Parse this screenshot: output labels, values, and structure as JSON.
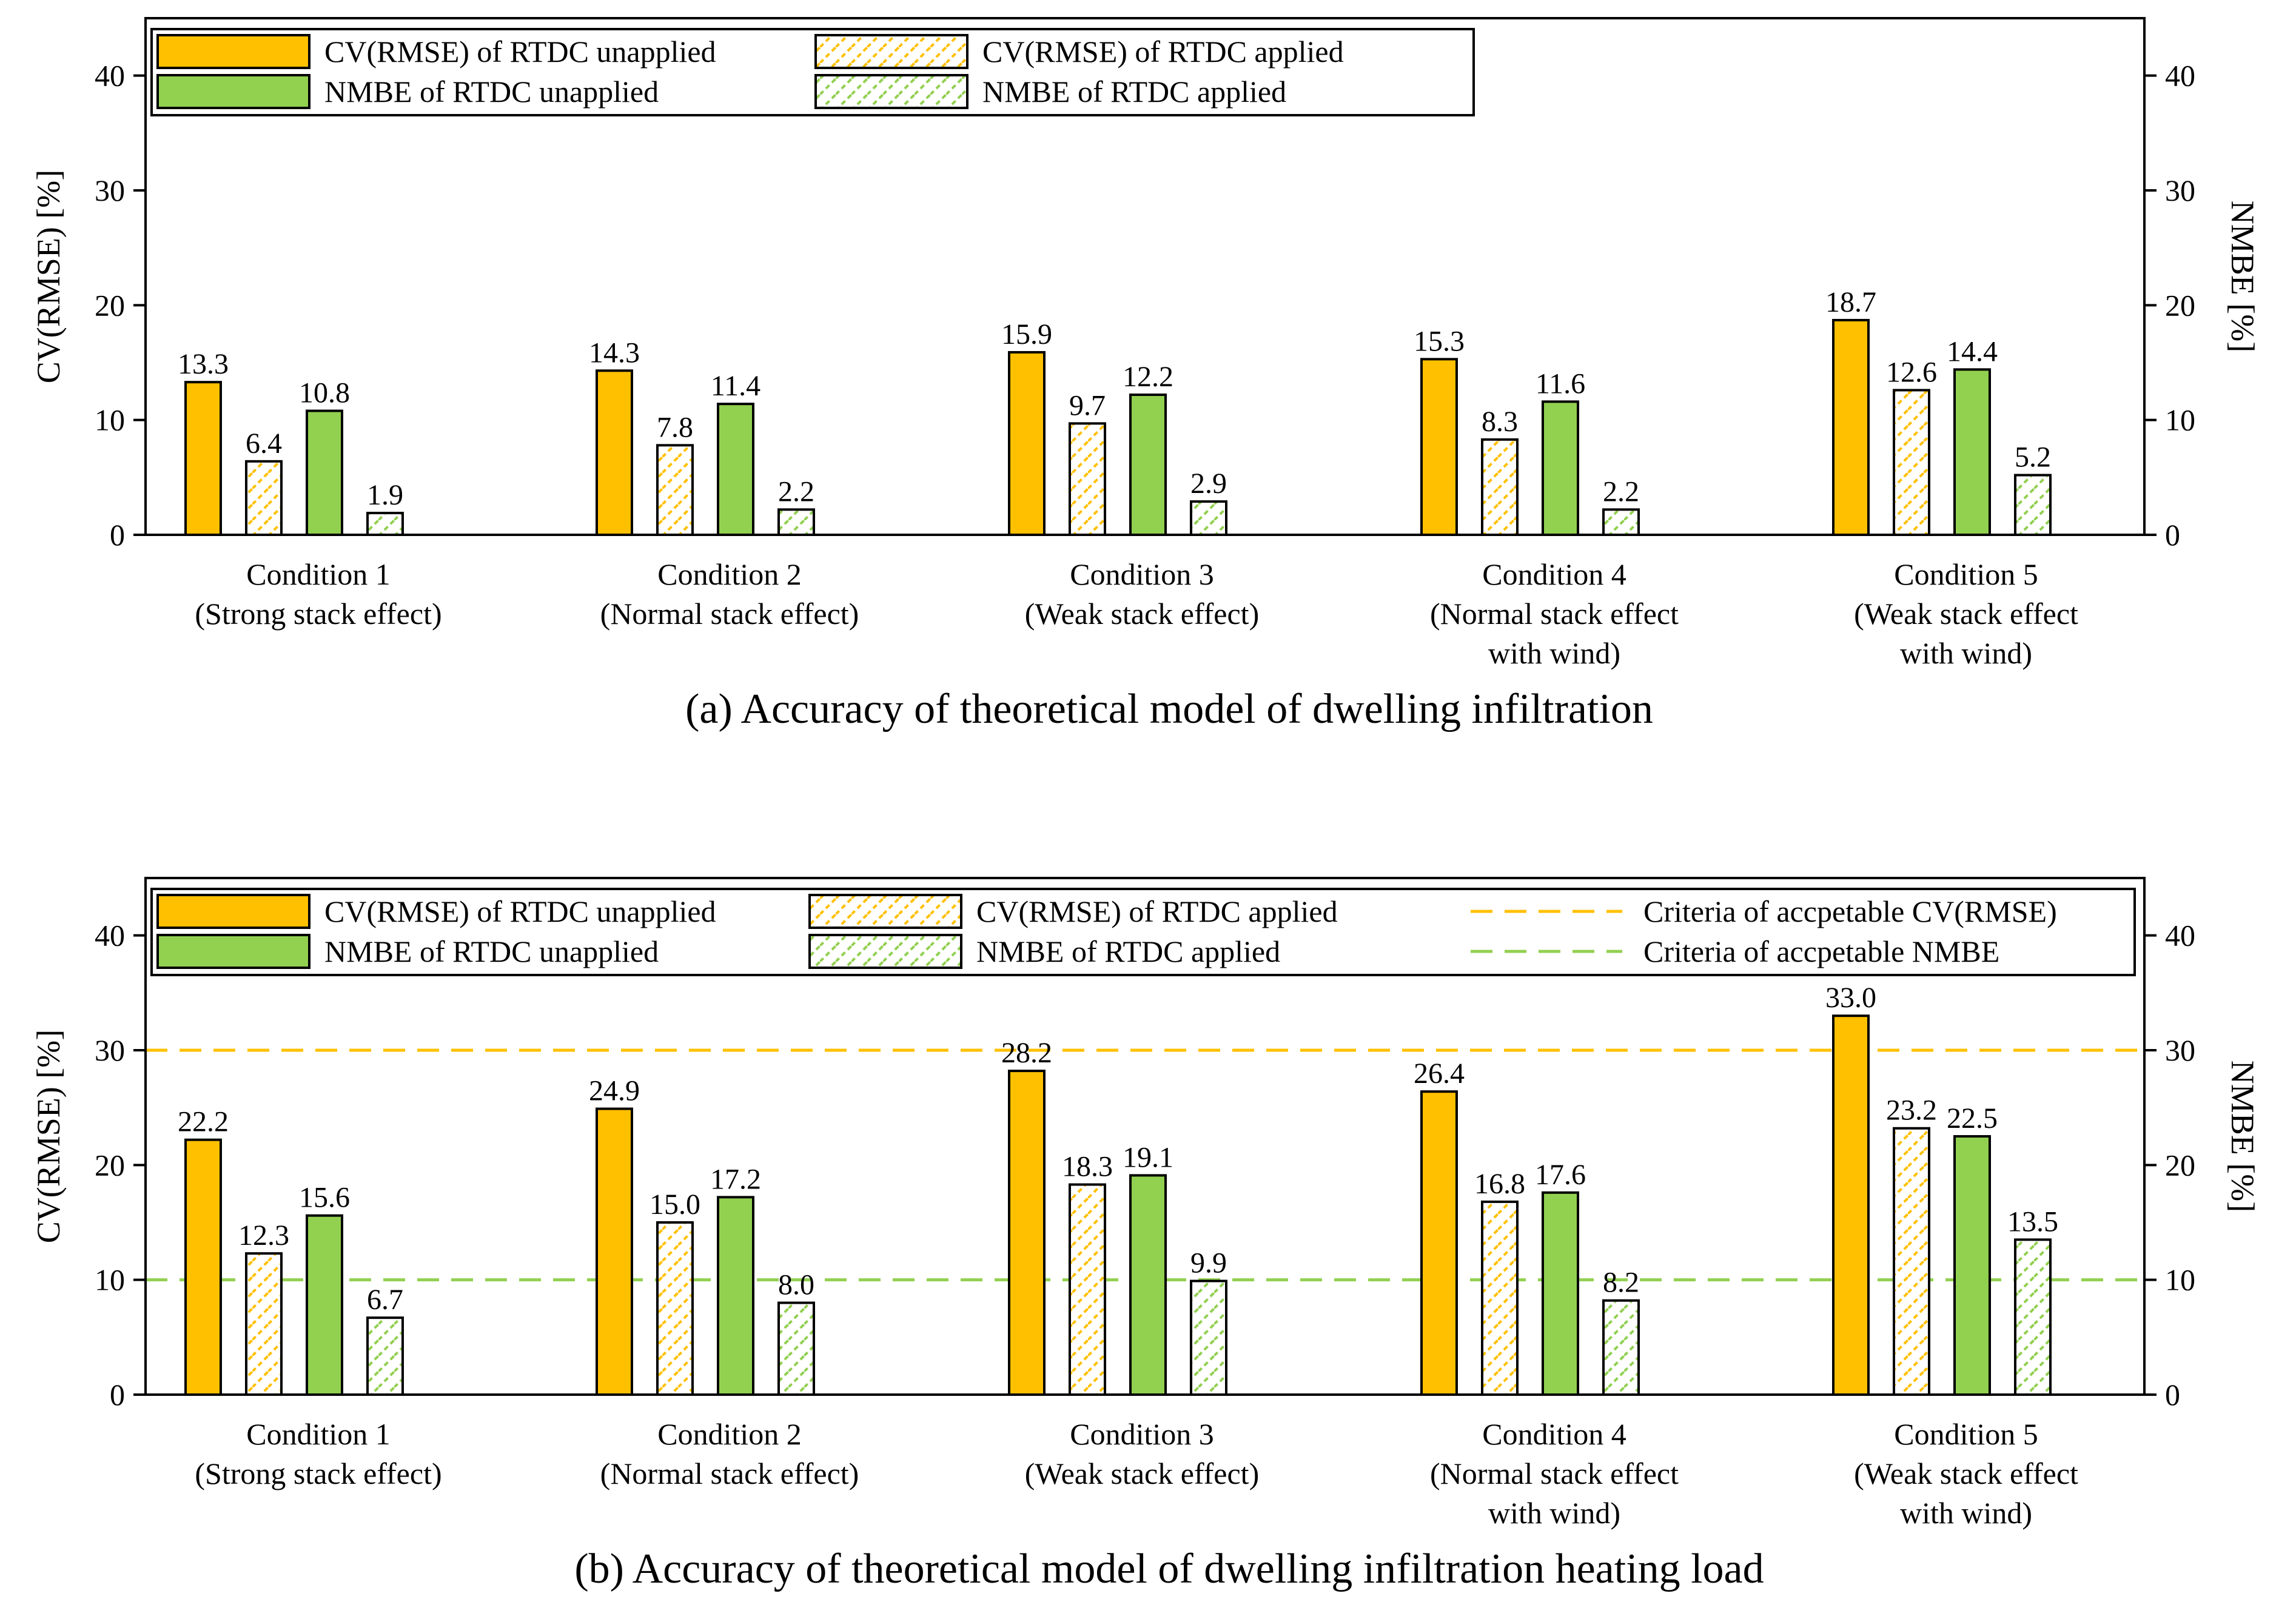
{
  "colors": {
    "cv_unapplied": "#FFC000",
    "nmbe_unapplied": "#92D050",
    "cv_hatch": "#FFC000",
    "nmbe_hatch": "#92D050",
    "criteria_cv": "#FFC000",
    "criteria_nmbe": "#92D050"
  },
  "chart_data": [
    {
      "type": "bar",
      "title": "(a) Accuracy of theoretical model of dwelling infiltration",
      "ylabel": "CV(RMSE) [%]",
      "ylabel_right": "NMBE [%]",
      "ylim": [
        0,
        45
      ],
      "yticks": [
        "0",
        "10",
        "20",
        "30",
        "40"
      ],
      "categories": [
        {
          "line1": "Condition 1",
          "line2": "(Strong stack effect)",
          "line3": ""
        },
        {
          "line1": "Condition 2",
          "line2": "(Normal stack effect)",
          "line3": ""
        },
        {
          "line1": "Condition 3",
          "line2": "(Weak stack effect)",
          "line3": ""
        },
        {
          "line1": "Condition 4",
          "line2": "(Normal stack effect",
          "line3": "with wind)"
        },
        {
          "line1": "Condition 5",
          "line2": "(Weak stack effect",
          "line3": "with wind)"
        }
      ],
      "series": [
        {
          "name": "CV(RMSE) of RTDC unapplied",
          "style": "cv_solid",
          "values": [
            13.3,
            14.3,
            15.9,
            15.3,
            18.7
          ],
          "labels": [
            "13.3",
            "14.3",
            "15.9",
            "15.3",
            "18.7"
          ]
        },
        {
          "name": "CV(RMSE) of RTDC applied",
          "style": "cv_hatch",
          "values": [
            6.4,
            7.8,
            9.7,
            8.3,
            12.6
          ],
          "labels": [
            "6.4",
            "7.8",
            "9.7",
            "8.3",
            "12.6"
          ]
        },
        {
          "name": "NMBE of RTDC unapplied",
          "style": "nmbe_solid",
          "values": [
            10.8,
            11.4,
            12.2,
            11.6,
            14.4
          ],
          "labels": [
            "10.8",
            "11.4",
            "12.2",
            "11.6",
            "14.4"
          ]
        },
        {
          "name": "NMBE of RTDC applied",
          "style": "nmbe_hatch",
          "values": [
            1.9,
            2.2,
            2.9,
            2.2,
            5.2
          ],
          "labels": [
            "1.9",
            "2.2",
            "2.9",
            "2.2",
            "5.2"
          ]
        }
      ],
      "criteria": []
    },
    {
      "type": "bar",
      "title": "(b) Accuracy of theoretical model of dwelling infiltration heating load",
      "ylabel": "CV(RMSE) [%]",
      "ylabel_right": "NMBE [%]",
      "ylim": [
        0,
        45
      ],
      "yticks": [
        "0",
        "10",
        "20",
        "30",
        "40"
      ],
      "categories": [
        {
          "line1": "Condition 1",
          "line2": "(Strong stack effect)",
          "line3": ""
        },
        {
          "line1": "Condition 2",
          "line2": "(Normal stack effect)",
          "line3": ""
        },
        {
          "line1": "Condition 3",
          "line2": "(Weak stack effect)",
          "line3": ""
        },
        {
          "line1": "Condition 4",
          "line2": "(Normal stack effect",
          "line3": "with wind)"
        },
        {
          "line1": "Condition 5",
          "line2": "(Weak stack effect",
          "line3": "with wind)"
        }
      ],
      "series": [
        {
          "name": "CV(RMSE) of RTDC unapplied",
          "style": "cv_solid",
          "values": [
            22.2,
            24.9,
            28.2,
            26.4,
            33.0
          ],
          "labels": [
            "22.2",
            "24.9",
            "28.2",
            "26.4",
            "33.0"
          ]
        },
        {
          "name": "CV(RMSE) of RTDC applied",
          "style": "cv_hatch",
          "values": [
            12.3,
            15.0,
            18.3,
            16.8,
            23.2
          ],
          "labels": [
            "12.3",
            "15.0",
            "18.3",
            "16.8",
            "23.2"
          ]
        },
        {
          "name": "NMBE of RTDC unapplied",
          "style": "nmbe_solid",
          "values": [
            15.6,
            17.2,
            19.1,
            17.6,
            22.5
          ],
          "labels": [
            "15.6",
            "17.2",
            "19.1",
            "17.6",
            "22.5"
          ]
        },
        {
          "name": "NMBE of RTDC applied",
          "style": "nmbe_hatch",
          "values": [
            6.7,
            8.0,
            9.9,
            8.2,
            13.5
          ],
          "labels": [
            "6.7",
            "8.0",
            "9.9",
            "8.2",
            "13.5"
          ]
        }
      ],
      "criteria": [
        {
          "name": "Criteria of accpetable CV(RMSE)",
          "value": 30,
          "color_key": "criteria_cv"
        },
        {
          "name": "Criteria of accpetable NMBE",
          "value": 10,
          "color_key": "criteria_nmbe"
        }
      ]
    }
  ]
}
